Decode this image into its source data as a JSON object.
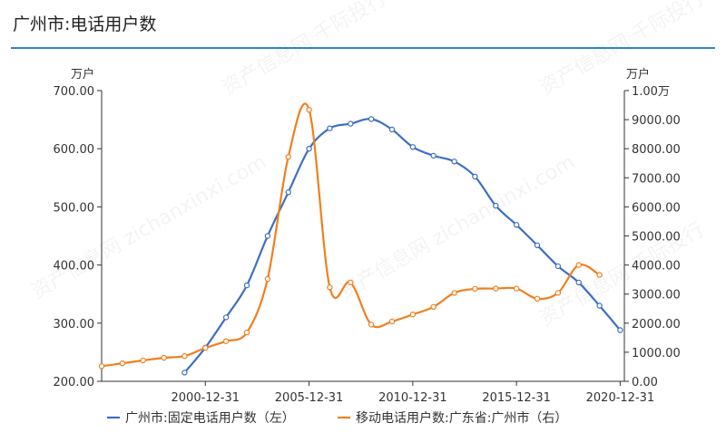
{
  "page": {
    "title": "广州市:电话用户数"
  },
  "chart_data": {
    "type": "line",
    "left_unit": "万户",
    "right_unit": "万户",
    "y_left": {
      "min": 200,
      "max": 700,
      "ticks": [
        "200.00",
        "300.00",
        "400.00",
        "500.00",
        "600.00",
        "700.00"
      ]
    },
    "y_right": {
      "min": 0,
      "max": 10000,
      "ticks": [
        "0.00",
        "1000.00",
        "2000.00",
        "3000.00",
        "4000.00",
        "5000.00",
        "6000.00",
        "7000.00",
        "8000.00",
        "9000.00",
        "1.00万"
      ]
    },
    "x_axis": {
      "min": 1996,
      "max": 2021.2,
      "ticks": [
        {
          "x": 2001,
          "label": "2000-12-31"
        },
        {
          "x": 2006,
          "label": "2005-12-31"
        },
        {
          "x": 2011,
          "label": "2010-12-31"
        },
        {
          "x": 2016,
          "label": "2015-12-31"
        },
        {
          "x": 2021,
          "label": "2020-12-31"
        }
      ]
    },
    "series": [
      {
        "name": "广州市:固定电话用户数（左）",
        "axis": "left",
        "color": "#3e6fc4",
        "x": [
          2000,
          2001,
          2002,
          2003,
          2004,
          2005,
          2006,
          2007,
          2008,
          2009,
          2010,
          2011,
          2012,
          2013,
          2014,
          2015,
          2016,
          2017,
          2018,
          2019,
          2020,
          2021
        ],
        "values": [
          215,
          258,
          310,
          365,
          450,
          525,
          600,
          635,
          643,
          651,
          633,
          603,
          588,
          578,
          552,
          502,
          469,
          434,
          398,
          370,
          330,
          288
        ]
      },
      {
        "name": "移动电话用户数:广东省:广州市（右）",
        "axis": "right",
        "color": "#f07f1f",
        "x": [
          1996,
          1997,
          1998,
          1999,
          2000,
          2001,
          2002,
          2003,
          2004,
          2005,
          2006,
          2007,
          2008,
          2009,
          2010,
          2011,
          2012,
          2013,
          2014,
          2015,
          2016,
          2017,
          2018,
          2019,
          2020
        ],
        "values": [
          520,
          620,
          720,
          810,
          870,
          1150,
          1380,
          1680,
          3520,
          7720,
          9340,
          3230,
          3400,
          1950,
          2060,
          2300,
          2560,
          3040,
          3180,
          3190,
          3190,
          2840,
          3040,
          4000,
          3660
        ]
      }
    ],
    "legend": {
      "position": "bottom"
    }
  }
}
